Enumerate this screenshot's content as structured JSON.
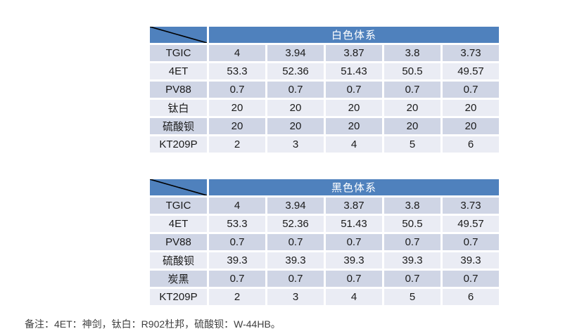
{
  "colors": {
    "header_blue": "#4f81bd",
    "band_dark": "#cfd5e5",
    "band_light": "#eaecf4",
    "header_text": "#ffffff",
    "body_text": "#1a1a1a"
  },
  "tables": [
    {
      "title": "白色体系",
      "rows": [
        {
          "label": "TGIC",
          "values": [
            "4",
            "3.94",
            "3.87",
            "3.8",
            "3.73"
          ]
        },
        {
          "label": "4ET",
          "values": [
            "53.3",
            "52.36",
            "51.43",
            "50.5",
            "49.57"
          ]
        },
        {
          "label": "PV88",
          "values": [
            "0.7",
            "0.7",
            "0.7",
            "0.7",
            "0.7"
          ]
        },
        {
          "label": "钛白",
          "values": [
            "20",
            "20",
            "20",
            "20",
            "20"
          ]
        },
        {
          "label": "硫酸钡",
          "values": [
            "20",
            "20",
            "20",
            "20",
            "20"
          ]
        },
        {
          "label": "KT209P",
          "values": [
            "2",
            "3",
            "4",
            "5",
            "6"
          ]
        }
      ]
    },
    {
      "title": "黑色体系",
      "rows": [
        {
          "label": "TGIC",
          "values": [
            "4",
            "3.94",
            "3.87",
            "3.8",
            "3.73"
          ]
        },
        {
          "label": "4ET",
          "values": [
            "53.3",
            "52.36",
            "51.43",
            "50.5",
            "49.57"
          ]
        },
        {
          "label": "PV88",
          "values": [
            "0.7",
            "0.7",
            "0.7",
            "0.7",
            "0.7"
          ]
        },
        {
          "label": "硫酸钡",
          "values": [
            "39.3",
            "39.3",
            "39.3",
            "39.3",
            "39.3"
          ]
        },
        {
          "label": "炭黑",
          "values": [
            "0.7",
            "0.7",
            "0.7",
            "0.7",
            "0.7"
          ]
        },
        {
          "label": "KT209P",
          "values": [
            "2",
            "3",
            "4",
            "5",
            "6"
          ]
        }
      ]
    }
  ],
  "footnote": "备注：4ET：神剑，钛白：R902杜邦，硫酸钡：W-44HB。"
}
